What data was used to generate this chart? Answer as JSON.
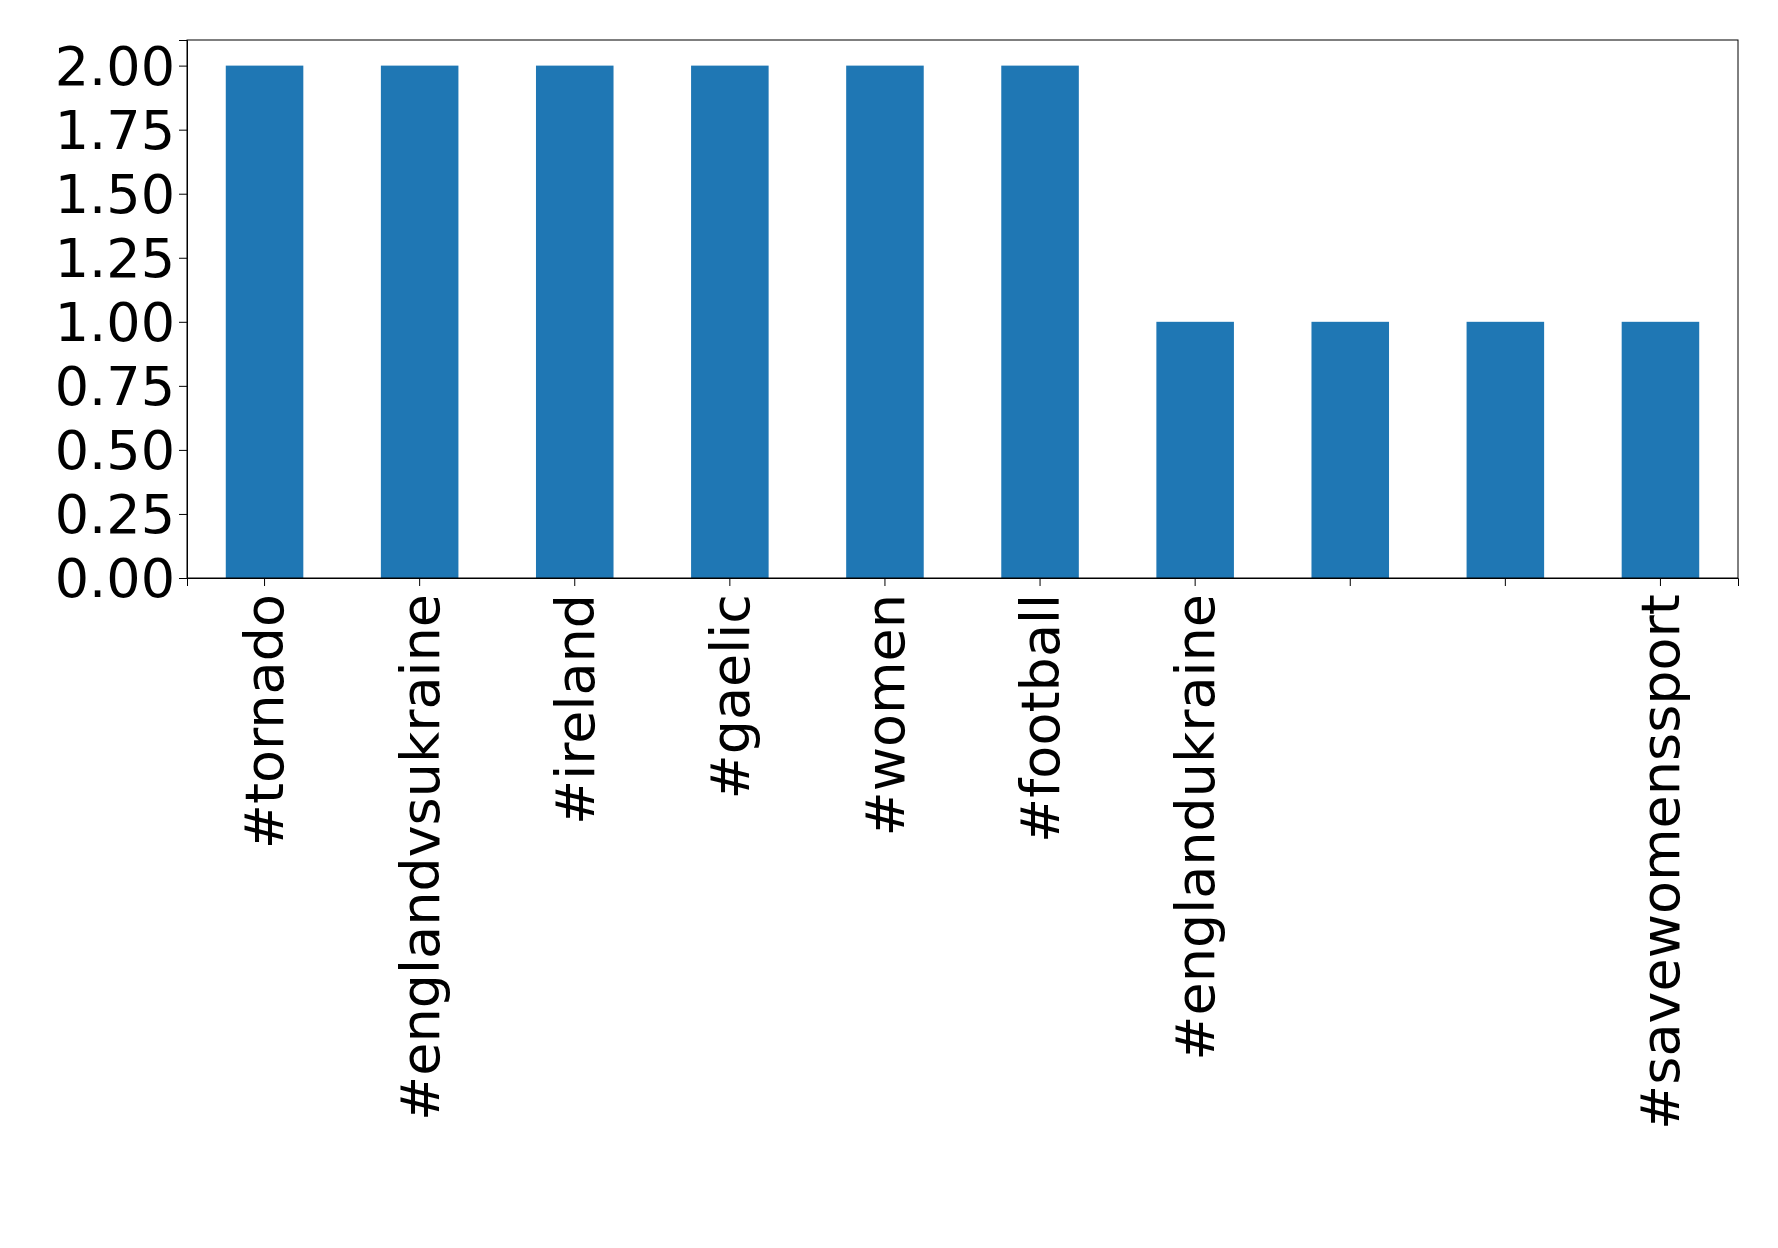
{
  "chart_data": {
    "type": "bar",
    "categories": [
      "#tornado",
      "#englandvsukraine",
      "#ireland",
      "#gaelic",
      "#women",
      "#football",
      "#englandukraine",
      null,
      null,
      "#savewomenssport"
    ],
    "values": [
      2,
      2,
      2,
      2,
      2,
      2,
      1,
      1,
      1,
      1
    ],
    "color": "#1f77b4",
    "ylim": [
      0,
      2.1
    ],
    "yticks": [
      {
        "value": 0,
        "label": "0.00"
      },
      {
        "value": 0.25,
        "label": "0.25"
      },
      {
        "value": 0.5,
        "label": "0.50"
      },
      {
        "value": 0.75,
        "label": "0.75"
      },
      {
        "value": 1,
        "label": "1.00"
      },
      {
        "value": 1.25,
        "label": "1.25"
      },
      {
        "value": 1.5,
        "label": "1.50"
      },
      {
        "value": 1.75,
        "label": "1.75"
      },
      {
        "value": 2,
        "label": "2.00"
      }
    ],
    "grid": false
  }
}
